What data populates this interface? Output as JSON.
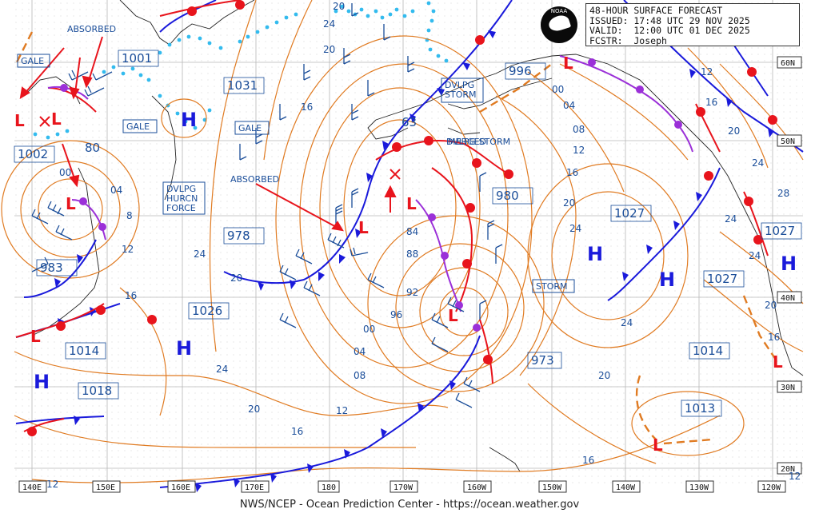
{
  "info": {
    "title": "48-HOUR SURFACE FORECAST",
    "issued": "ISSUED: 17:48 UTC 29 NOV 2025",
    "valid": "VALID:  12:00 UTC 01 DEC 2025",
    "forecaster": "FCSTR:  Joseph",
    "logo_text": "NOAA"
  },
  "footer": "NWS/NCEP - Ocean Prediction Center - https://ocean.weather.gov",
  "colors": {
    "isobar": "#e07b22",
    "warm_front": "#e8141c",
    "cold_front": "#1a1adb",
    "occluded": "#9b30d8",
    "ice": "#33bbee",
    "label": "#1a4d99",
    "grid": "#b0b0b0"
  },
  "lon_labels": [
    "140E",
    "150E",
    "160E",
    "170E",
    "180",
    "170W",
    "160W",
    "150W",
    "140W",
    "130W",
    "120W"
  ],
  "lat_labels": [
    "60N",
    "50N",
    "40N",
    "30N",
    "20N"
  ],
  "stray_labels": [
    "12",
    "12"
  ],
  "high_letter": "H",
  "low_letter": "L",
  "pressure_centers": [
    "1001",
    "1031",
    "1002",
    "80",
    "983",
    "978",
    "1026",
    "1014",
    "1018",
    "63",
    "980",
    "996",
    "1027",
    "1027",
    "1027",
    "973",
    "1014",
    "1013"
  ],
  "isobar_labels": [
    "24",
    "20",
    "16",
    "04",
    "00",
    "8",
    "12",
    "16",
    "24",
    "20",
    "24",
    "20",
    "16",
    "12",
    "84",
    "88",
    "92",
    "96",
    "00",
    "04",
    "08",
    "00",
    "04",
    "08",
    "12",
    "16",
    "20",
    "24",
    "12",
    "16",
    "20",
    "24",
    "28",
    "24",
    "20",
    "16",
    "24",
    "20",
    "16",
    "24",
    "20"
  ],
  "warnings": [
    "ABSORBED",
    "GALE",
    "GALE",
    "GALE",
    "ABSORBED",
    "DVLPG HURCN FORCE",
    "DVLPG STORM",
    "MERGED",
    "STORM"
  ]
}
